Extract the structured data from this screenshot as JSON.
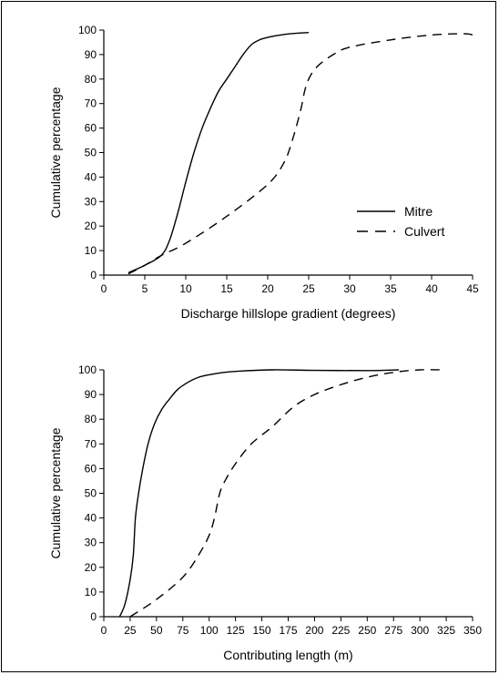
{
  "chart_data": [
    {
      "type": "line",
      "xlabel": "Discharge hillslope gradient (degrees)",
      "ylabel": "Cumulative percentage",
      "xlim": [
        0,
        45
      ],
      "ylim": [
        0,
        100
      ],
      "xticks": [
        0,
        5,
        10,
        15,
        20,
        25,
        30,
        35,
        40,
        45
      ],
      "yticks": [
        0,
        10,
        20,
        30,
        40,
        50,
        60,
        70,
        80,
        90,
        100
      ],
      "legend": "right-middle",
      "grid": false,
      "series": [
        {
          "name": "Mitre",
          "style": "solid",
          "x": [
            3,
            5,
            7,
            8,
            9,
            10,
            11,
            12,
            13,
            14,
            15,
            16,
            17,
            18,
            19,
            20,
            21,
            22,
            23,
            25
          ],
          "y": [
            1,
            4,
            8,
            14,
            25,
            38,
            50,
            60,
            68,
            75,
            80,
            85,
            90,
            94,
            96,
            97,
            97.7,
            98.2,
            98.6,
            99
          ]
        },
        {
          "name": "Culvert",
          "style": "dashed",
          "x": [
            3,
            5,
            7,
            10,
            15,
            20,
            22,
            23,
            24,
            24.5,
            25,
            26,
            28,
            30,
            35,
            40,
            44,
            45
          ],
          "y": [
            0.5,
            4,
            8,
            13,
            24,
            37,
            46,
            55,
            67,
            75,
            80,
            85,
            90,
            93,
            96,
            98,
            98.5,
            98
          ]
        }
      ]
    },
    {
      "type": "line",
      "xlabel": "Contributing length (m)",
      "ylabel": "Cumulative percentage",
      "xlim": [
        0,
        350
      ],
      "ylim": [
        0,
        100
      ],
      "xticks": [
        0,
        25,
        50,
        75,
        100,
        125,
        150,
        175,
        200,
        225,
        250,
        275,
        300,
        325,
        350
      ],
      "yticks": [
        0,
        10,
        20,
        30,
        40,
        50,
        60,
        70,
        80,
        90,
        100
      ],
      "grid": false,
      "series": [
        {
          "style": "solid",
          "x": [
            15,
            20,
            25,
            28,
            30,
            33,
            37,
            42,
            48,
            55,
            62,
            70,
            80,
            90,
            100,
            115,
            130,
            160,
            200,
            250,
            280
          ],
          "y": [
            0,
            5,
            15,
            25,
            40,
            50,
            60,
            70,
            78,
            84,
            88,
            92,
            95,
            97,
            98,
            99,
            99.5,
            100,
            99.8,
            99.7,
            100
          ]
        },
        {
          "style": "dashed",
          "x": [
            25,
            50,
            75,
            90,
            100,
            105,
            110,
            115,
            125,
            140,
            160,
            180,
            200,
            225,
            250,
            275,
            300,
            320
          ],
          "y": [
            0,
            7,
            16,
            25,
            33,
            40,
            50,
            55,
            62,
            70,
            77,
            85,
            90,
            94,
            97,
            99,
            100,
            100
          ]
        }
      ]
    }
  ]
}
